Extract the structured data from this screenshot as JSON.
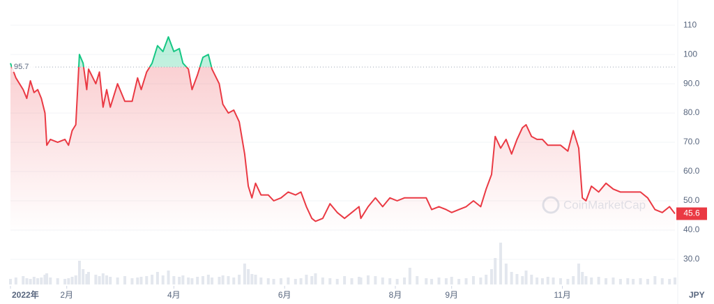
{
  "chart_data": {
    "type": "line",
    "x": [
      0,
      3,
      7,
      9,
      11,
      13,
      15,
      17,
      19,
      20,
      22,
      26,
      30,
      32,
      34,
      36,
      38,
      40,
      42,
      43,
      47,
      49,
      51,
      53,
      55,
      59,
      63,
      67,
      70,
      72,
      75,
      78,
      81,
      84,
      87,
      90,
      93,
      95,
      98,
      100,
      103,
      106,
      109,
      111,
      115,
      117,
      120,
      123,
      126,
      129,
      131,
      133,
      135,
      138,
      142,
      145,
      149,
      153,
      157,
      160,
      163,
      166,
      168,
      172,
      176,
      180,
      184,
      188,
      192,
      193,
      197,
      201,
      205,
      209,
      213,
      217,
      220,
      224,
      229,
      232,
      236,
      240,
      243,
      247,
      251,
      255,
      259,
      262,
      265,
      267,
      270,
      273,
      276,
      279,
      282,
      284,
      287,
      290,
      293,
      296,
      299,
      303,
      307,
      310,
      313,
      315,
      317,
      320,
      324,
      328,
      332,
      336,
      340,
      343,
      347,
      351,
      355,
      359,
      363,
      366
    ],
    "values": [
      97,
      92,
      88,
      85,
      91,
      87,
      88,
      85,
      80,
      69,
      71,
      70,
      71,
      69,
      74,
      76,
      100,
      97,
      88,
      95,
      90,
      94,
      82,
      88,
      82,
      90,
      84,
      84,
      92,
      88,
      94,
      97,
      103,
      101,
      106,
      101,
      102,
      97,
      95,
      88,
      93,
      99,
      100,
      95,
      90,
      83,
      80,
      81,
      77,
      66,
      55,
      51,
      56,
      52,
      52,
      50,
      51,
      53,
      52,
      53,
      48,
      44,
      43,
      44,
      49,
      46,
      44,
      46,
      48,
      44,
      48,
      51,
      48,
      51,
      50,
      51,
      51,
      51,
      51,
      47,
      48,
      47,
      46,
      47,
      48,
      50,
      48,
      54,
      59,
      72,
      68,
      71,
      66,
      71,
      75,
      76,
      72,
      71,
      71,
      69,
      69,
      69,
      67,
      74,
      68,
      51,
      50,
      55,
      53,
      56,
      54,
      53,
      53,
      53,
      53,
      51,
      47,
      46,
      48,
      45.6
    ],
    "volume": [
      8,
      10,
      12,
      9,
      8,
      11,
      9,
      10,
      14,
      16,
      10,
      9,
      8,
      9,
      11,
      13,
      34,
      22,
      15,
      18,
      14,
      12,
      16,
      13,
      11,
      10,
      12,
      9,
      10,
      11,
      12,
      14,
      18,
      13,
      20,
      12,
      11,
      13,
      10,
      9,
      11,
      12,
      14,
      10,
      11,
      13,
      12,
      10,
      14,
      30,
      22,
      15,
      14,
      10,
      9,
      8,
      9,
      10,
      8,
      9,
      14,
      12,
      16,
      10,
      9,
      8,
      12,
      9,
      11,
      10,
      13,
      12,
      10,
      9,
      8,
      10,
      24,
      12,
      9,
      8,
      10,
      9,
      11,
      8,
      9,
      12,
      10,
      14,
      22,
      38,
      60,
      30,
      18,
      15,
      12,
      20,
      14,
      10,
      9,
      11,
      10,
      9,
      8,
      12,
      30,
      18,
      12,
      10,
      11,
      9,
      10,
      8,
      9,
      8,
      9,
      8,
      12,
      9,
      8,
      10
    ],
    "reference": 95.7,
    "last_price": 45.6,
    "currency": "JPY",
    "watermark": "CoinMarketCap",
    "color_up": "#16c784",
    "color_down": "#ea3943",
    "grid": true,
    "xlim": [
      0,
      366
    ],
    "xticks": [
      {
        "value": 0,
        "label": "2022年"
      },
      {
        "value": 31,
        "label": "2月"
      },
      {
        "value": 90,
        "label": "4月"
      },
      {
        "value": 151,
        "label": "6月"
      },
      {
        "value": 212,
        "label": "8月"
      },
      {
        "value": 243,
        "label": "9月"
      },
      {
        "value": 304,
        "label": "11月"
      }
    ],
    "ylim": [
      20,
      118.6
    ],
    "yticks": [
      {
        "value": 30,
        "label": "30.0"
      },
      {
        "value": 40,
        "label": "40.0"
      },
      {
        "value": 50,
        "label": "50.0"
      },
      {
        "value": 60,
        "label": "60.0"
      },
      {
        "value": 70,
        "label": "70.0"
      },
      {
        "value": 80,
        "label": "80.0"
      },
      {
        "value": 90,
        "label": "90.0"
      },
      100,
      110
    ]
  }
}
